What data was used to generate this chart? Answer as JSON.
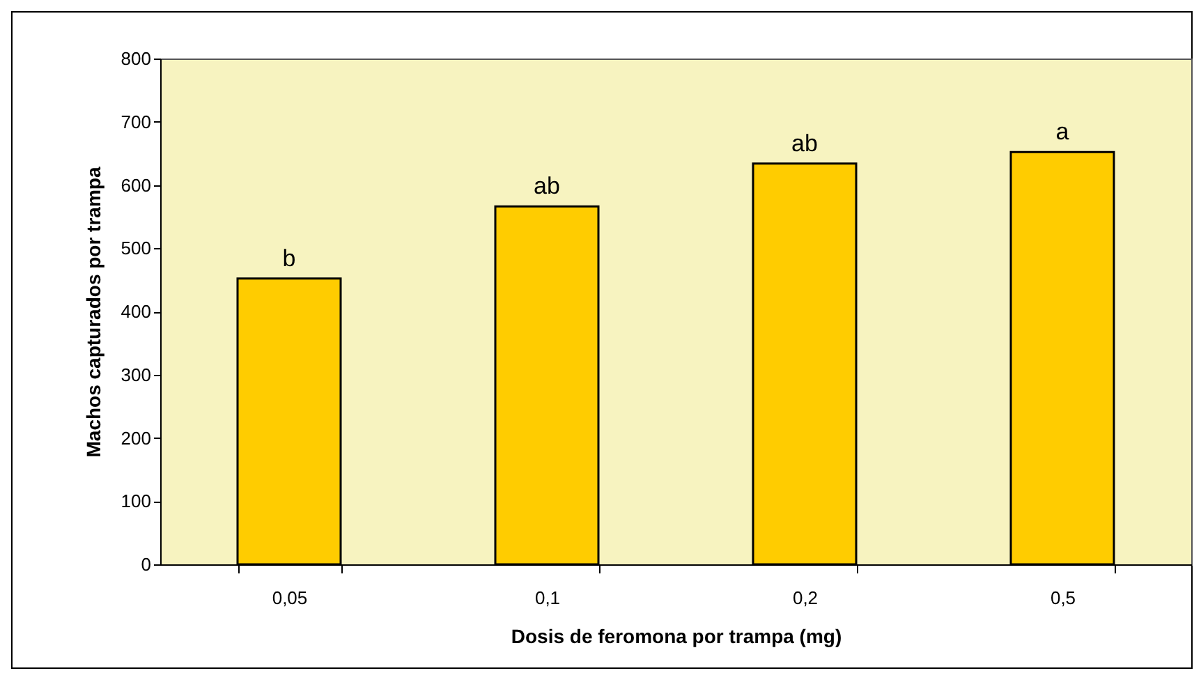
{
  "chart_data": {
    "type": "bar",
    "xlabel": "Dosis de feromona por trampa (mg)",
    "ylabel": "Machos capturados por trampa",
    "categories": [
      "0,05",
      "0,1",
      "0,2",
      "0,5"
    ],
    "values": [
      452,
      566,
      634,
      652
    ],
    "value_labels": [
      "b",
      "ab",
      "ab",
      "a"
    ],
    "color": "#ffcc00",
    "ylim": [
      0,
      800
    ],
    "yticks": [
      0,
      100,
      200,
      300,
      400,
      500,
      600,
      700,
      800
    ],
    "grid": false
  }
}
